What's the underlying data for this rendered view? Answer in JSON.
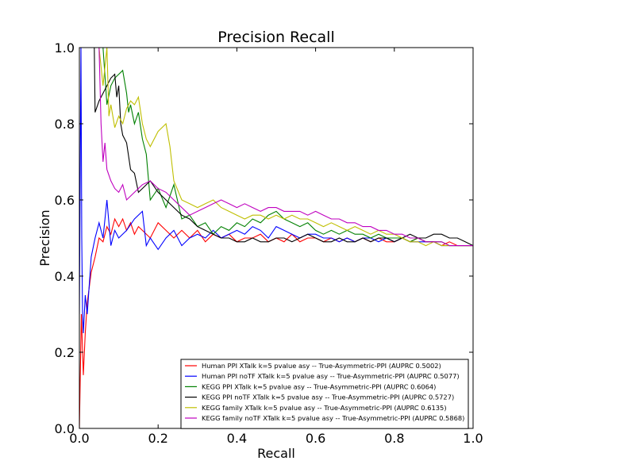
{
  "chart_data": {
    "type": "line",
    "title": "Precision Recall",
    "xlabel": "Recall",
    "ylabel": "Precision",
    "xlim": [
      0.0,
      1.0
    ],
    "ylim": [
      0.0,
      1.0
    ],
    "xticks": [
      "0.0",
      "0.2",
      "0.4",
      "0.6",
      "0.8",
      "1.0"
    ],
    "yticks": [
      "0.0",
      "0.2",
      "0.4",
      "0.6",
      "0.8",
      "1.0"
    ],
    "grid": false,
    "legend_position": "lower-right",
    "series": [
      {
        "name": "Human PPI XTalk k=5 pvalue asy -- True-Asymmetric-PPI (AUPRC 0.5002)",
        "color": "#ff0000",
        "x": [
          0.0,
          0.005,
          0.01,
          0.015,
          0.02,
          0.03,
          0.04,
          0.05,
          0.06,
          0.07,
          0.08,
          0.09,
          0.1,
          0.11,
          0.12,
          0.13,
          0.14,
          0.15,
          0.16,
          0.18,
          0.2,
          0.22,
          0.24,
          0.26,
          0.28,
          0.3,
          0.32,
          0.34,
          0.36,
          0.38,
          0.4,
          0.42,
          0.44,
          0.46,
          0.48,
          0.5,
          0.52,
          0.54,
          0.56,
          0.58,
          0.6,
          0.62,
          0.64,
          0.66,
          0.68,
          0.7,
          0.72,
          0.74,
          0.76,
          0.78,
          0.8,
          0.82,
          0.84,
          0.86,
          0.88,
          0.9,
          0.92,
          0.94,
          0.96,
          0.98,
          1.0
        ],
        "y": [
          0.0,
          0.3,
          0.14,
          0.25,
          0.33,
          0.41,
          0.45,
          0.5,
          0.49,
          0.53,
          0.51,
          0.55,
          0.53,
          0.55,
          0.52,
          0.54,
          0.51,
          0.53,
          0.52,
          0.5,
          0.54,
          0.52,
          0.5,
          0.52,
          0.5,
          0.52,
          0.49,
          0.51,
          0.5,
          0.51,
          0.49,
          0.5,
          0.5,
          0.51,
          0.49,
          0.5,
          0.49,
          0.51,
          0.49,
          0.5,
          0.5,
          0.49,
          0.5,
          0.49,
          0.5,
          0.49,
          0.5,
          0.49,
          0.5,
          0.49,
          0.49,
          0.5,
          0.49,
          0.5,
          0.49,
          0.49,
          0.48,
          0.49,
          0.48,
          0.48,
          0.48
        ]
      },
      {
        "name": "Human PPI noTF XTalk k=5 pvalue asy -- True-Asymmetric-PPI (AUPRC 0.5077)",
        "color": "#0000ff",
        "x": [
          0.0,
          0.004,
          0.006,
          0.008,
          0.01,
          0.015,
          0.02,
          0.03,
          0.04,
          0.05,
          0.06,
          0.07,
          0.08,
          0.09,
          0.1,
          0.12,
          0.14,
          0.16,
          0.17,
          0.18,
          0.2,
          0.22,
          0.24,
          0.26,
          0.28,
          0.3,
          0.32,
          0.34,
          0.36,
          0.38,
          0.4,
          0.42,
          0.44,
          0.46,
          0.48,
          0.5,
          0.52,
          0.54,
          0.56,
          0.58,
          0.6,
          0.62,
          0.64,
          0.66,
          0.68,
          0.7,
          0.72,
          0.74,
          0.76,
          0.78,
          0.8,
          0.82,
          0.84,
          0.86,
          0.88,
          0.9,
          0.92,
          0.94,
          0.96,
          0.98,
          1.0
        ],
        "y": [
          0.3,
          1.0,
          0.5,
          0.3,
          0.25,
          0.35,
          0.3,
          0.45,
          0.5,
          0.54,
          0.5,
          0.6,
          0.48,
          0.52,
          0.5,
          0.52,
          0.55,
          0.57,
          0.48,
          0.5,
          0.47,
          0.5,
          0.52,
          0.48,
          0.5,
          0.51,
          0.5,
          0.52,
          0.5,
          0.51,
          0.52,
          0.51,
          0.53,
          0.52,
          0.5,
          0.53,
          0.52,
          0.51,
          0.5,
          0.51,
          0.51,
          0.5,
          0.5,
          0.49,
          0.5,
          0.49,
          0.5,
          0.5,
          0.49,
          0.5,
          0.49,
          0.5,
          0.49,
          0.49,
          0.49,
          0.49,
          0.48,
          0.48,
          0.48,
          0.48,
          0.48
        ]
      },
      {
        "name": "KEGG PPI XTalk k=5 pvalue asy -- True-Asymmetric-PPI (AUPRC 0.6064)",
        "color": "#008000",
        "x": [
          0.0,
          0.04,
          0.06,
          0.07,
          0.08,
          0.09,
          0.1,
          0.11,
          0.12,
          0.125,
          0.13,
          0.14,
          0.15,
          0.16,
          0.17,
          0.18,
          0.2,
          0.22,
          0.24,
          0.26,
          0.28,
          0.3,
          0.32,
          0.34,
          0.36,
          0.38,
          0.4,
          0.42,
          0.44,
          0.46,
          0.48,
          0.5,
          0.52,
          0.54,
          0.56,
          0.58,
          0.6,
          0.62,
          0.64,
          0.66,
          0.68,
          0.7,
          0.72,
          0.74,
          0.76,
          0.78,
          0.8,
          0.82,
          0.84,
          0.86,
          0.88,
          0.9,
          0.92,
          0.94,
          0.96,
          0.98,
          1.0
        ],
        "y": [
          1.0,
          1.0,
          1.0,
          0.85,
          0.9,
          0.92,
          0.93,
          0.94,
          0.88,
          0.83,
          0.85,
          0.8,
          0.83,
          0.76,
          0.72,
          0.6,
          0.63,
          0.58,
          0.64,
          0.55,
          0.56,
          0.53,
          0.54,
          0.51,
          0.53,
          0.52,
          0.54,
          0.53,
          0.55,
          0.54,
          0.56,
          0.57,
          0.55,
          0.54,
          0.53,
          0.54,
          0.52,
          0.51,
          0.52,
          0.51,
          0.52,
          0.51,
          0.51,
          0.5,
          0.51,
          0.5,
          0.5,
          0.5,
          0.49,
          0.5,
          0.49,
          0.49,
          0.49,
          0.48,
          0.48,
          0.48,
          0.48
        ]
      },
      {
        "name": "KEGG PPI noTF XTalk k=5 pvalue asy -- True-Asymmetric-PPI (AUPRC 0.5727)",
        "color": "#000000",
        "x": [
          0.0,
          0.038,
          0.04,
          0.05,
          0.06,
          0.07,
          0.08,
          0.09,
          0.095,
          0.1,
          0.105,
          0.11,
          0.12,
          0.13,
          0.14,
          0.15,
          0.16,
          0.18,
          0.2,
          0.22,
          0.24,
          0.26,
          0.28,
          0.3,
          0.32,
          0.34,
          0.36,
          0.38,
          0.4,
          0.42,
          0.44,
          0.46,
          0.48,
          0.5,
          0.52,
          0.54,
          0.56,
          0.58,
          0.6,
          0.62,
          0.64,
          0.66,
          0.68,
          0.7,
          0.72,
          0.74,
          0.76,
          0.78,
          0.8,
          0.82,
          0.84,
          0.86,
          0.88,
          0.9,
          0.92,
          0.94,
          0.96,
          0.98,
          1.0
        ],
        "y": [
          1.0,
          1.0,
          0.83,
          0.86,
          0.88,
          0.9,
          0.92,
          0.93,
          0.87,
          0.9,
          0.8,
          0.77,
          0.75,
          0.68,
          0.67,
          0.62,
          0.63,
          0.65,
          0.62,
          0.6,
          0.58,
          0.56,
          0.55,
          0.53,
          0.52,
          0.51,
          0.5,
          0.5,
          0.49,
          0.49,
          0.5,
          0.49,
          0.49,
          0.5,
          0.5,
          0.49,
          0.5,
          0.51,
          0.5,
          0.49,
          0.49,
          0.5,
          0.49,
          0.49,
          0.5,
          0.49,
          0.5,
          0.5,
          0.49,
          0.5,
          0.51,
          0.5,
          0.5,
          0.51,
          0.51,
          0.5,
          0.5,
          0.49,
          0.48
        ]
      },
      {
        "name": "KEGG family XTalk k=5 pvalue asy -- True-Asymmetric-PPI (AUPRC 0.6135)",
        "color": "#bfbf00",
        "x": [
          0.0,
          0.05,
          0.06,
          0.07,
          0.075,
          0.08,
          0.09,
          0.1,
          0.11,
          0.12,
          0.13,
          0.14,
          0.15,
          0.16,
          0.17,
          0.18,
          0.2,
          0.22,
          0.23,
          0.24,
          0.26,
          0.28,
          0.3,
          0.32,
          0.34,
          0.36,
          0.38,
          0.4,
          0.42,
          0.44,
          0.46,
          0.48,
          0.5,
          0.52,
          0.54,
          0.56,
          0.58,
          0.6,
          0.62,
          0.64,
          0.66,
          0.68,
          0.7,
          0.72,
          0.74,
          0.76,
          0.78,
          0.8,
          0.82,
          0.84,
          0.86,
          0.88,
          0.9,
          0.92,
          0.94,
          0.96,
          0.98,
          1.0
        ],
        "y": [
          1.0,
          1.0,
          0.9,
          1.0,
          0.82,
          0.85,
          0.79,
          0.82,
          0.8,
          0.84,
          0.86,
          0.85,
          0.87,
          0.8,
          0.76,
          0.74,
          0.78,
          0.8,
          0.74,
          0.65,
          0.6,
          0.59,
          0.58,
          0.59,
          0.6,
          0.58,
          0.57,
          0.56,
          0.55,
          0.56,
          0.56,
          0.55,
          0.56,
          0.55,
          0.56,
          0.55,
          0.55,
          0.54,
          0.53,
          0.54,
          0.53,
          0.52,
          0.53,
          0.52,
          0.51,
          0.52,
          0.51,
          0.51,
          0.5,
          0.49,
          0.49,
          0.48,
          0.49,
          0.48,
          0.48,
          0.48,
          0.48,
          0.48
        ]
      },
      {
        "name": "KEGG family noTF XTalk k=5 pvalue asy -- True-Asymmetric-PPI (AUPRC 0.5868)",
        "color": "#bf00bf",
        "x": [
          0.0,
          0.04,
          0.05,
          0.055,
          0.06,
          0.065,
          0.07,
          0.08,
          0.09,
          0.1,
          0.11,
          0.12,
          0.14,
          0.16,
          0.18,
          0.2,
          0.22,
          0.24,
          0.26,
          0.28,
          0.3,
          0.32,
          0.34,
          0.36,
          0.38,
          0.4,
          0.42,
          0.44,
          0.46,
          0.48,
          0.5,
          0.52,
          0.54,
          0.56,
          0.58,
          0.6,
          0.62,
          0.64,
          0.66,
          0.68,
          0.7,
          0.72,
          0.74,
          0.76,
          0.78,
          0.8,
          0.82,
          0.84,
          0.86,
          0.88,
          0.9,
          0.92,
          0.94,
          0.96,
          0.98,
          1.0
        ],
        "y": [
          1.0,
          1.0,
          1.0,
          0.8,
          0.7,
          0.75,
          0.68,
          0.65,
          0.63,
          0.62,
          0.64,
          0.6,
          0.62,
          0.64,
          0.65,
          0.63,
          0.62,
          0.6,
          0.58,
          0.56,
          0.57,
          0.58,
          0.59,
          0.6,
          0.59,
          0.58,
          0.59,
          0.58,
          0.57,
          0.58,
          0.58,
          0.57,
          0.57,
          0.57,
          0.56,
          0.57,
          0.56,
          0.55,
          0.55,
          0.54,
          0.54,
          0.53,
          0.53,
          0.52,
          0.52,
          0.51,
          0.51,
          0.5,
          0.5,
          0.49,
          0.49,
          0.49,
          0.48,
          0.48,
          0.48,
          0.48
        ]
      }
    ]
  }
}
